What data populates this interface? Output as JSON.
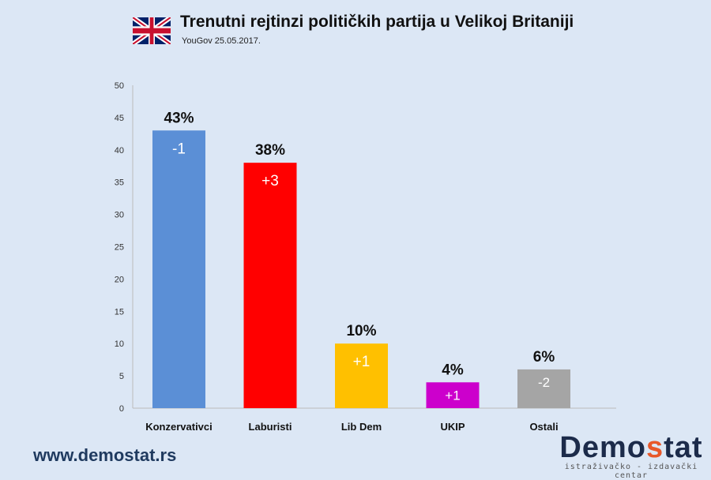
{
  "header": {
    "title": "Trenutni rejtinzi političkih partija u Velikoj Britaniji",
    "subtitle": "YouGov 25.05.2017.",
    "flag_icon": "uk-flag-icon"
  },
  "footer": {
    "website": "www.demostat.rs",
    "logo_main_a": "Demo",
    "logo_main_b": "s",
    "logo_main_c": "tat",
    "logo_tagline": "istraživačko - izdavački centar"
  },
  "chart_data": {
    "type": "bar",
    "title": "Trenutni rejtinzi političkih partija u Velikoj Britaniji",
    "subtitle": "YouGov 25.05.2017.",
    "categories": [
      "Konzervativci",
      "Laburisti",
      "Lib Dem",
      "UKIP",
      "Ostali"
    ],
    "values": [
      43,
      38,
      10,
      4,
      6
    ],
    "value_labels": [
      "43%",
      "38%",
      "10%",
      "4%",
      "6%"
    ],
    "change_labels": [
      "-1",
      "+3",
      "+1",
      "+1",
      "-2"
    ],
    "colors": [
      "#5b8fd6",
      "#ff0000",
      "#ffc000",
      "#cc00cc",
      "#a5a5a5"
    ],
    "ylim": [
      0,
      50
    ],
    "yticks": [
      0,
      5,
      10,
      15,
      20,
      25,
      30,
      35,
      40,
      45,
      50
    ],
    "grid": false,
    "legend": "none"
  }
}
